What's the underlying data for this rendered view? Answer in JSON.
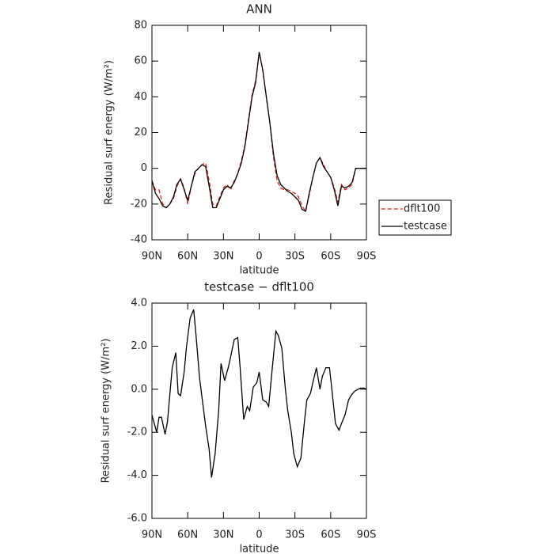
{
  "chart_data": [
    {
      "type": "line",
      "title": "ANN",
      "xlabel": "latitude",
      "ylabel": "Residual surf energy (W/m²)",
      "x": [
        90,
        87,
        84,
        81,
        78,
        75,
        72,
        69,
        66,
        63,
        60,
        57,
        54,
        51,
        48,
        45,
        42,
        39,
        36,
        33,
        30,
        27,
        24,
        21,
        18,
        15,
        12,
        9,
        6,
        3,
        0,
        -3,
        -6,
        -9,
        -12,
        -15,
        -18,
        -21,
        -24,
        -27,
        -30,
        -33,
        -36,
        -39,
        -42,
        -45,
        -48,
        -51,
        -54,
        -57,
        -60,
        -63,
        -66,
        -69,
        -72,
        -75,
        -78,
        -81,
        -84,
        -87,
        -90
      ],
      "series": [
        {
          "name": "dflt100",
          "color": "#e0201b",
          "dash": true,
          "values": [
            -7,
            -12,
            -12,
            -20,
            -22,
            -20,
            -17,
            -10,
            -6,
            -11,
            -20,
            -10,
            -3,
            0,
            2,
            3,
            -7,
            -20,
            -21,
            -16,
            -11,
            -9,
            -12,
            -7,
            -3,
            4,
            13,
            27,
            41,
            49,
            65,
            55,
            40,
            25,
            6,
            -7,
            -11,
            -12,
            -12,
            -13,
            -14,
            -16,
            -21,
            -24,
            -15,
            -5,
            3,
            6,
            2,
            -2,
            -5,
            -11,
            -19,
            -9,
            -12,
            -11,
            -9,
            0,
            0,
            0,
            0
          ]
        },
        {
          "name": "testcase",
          "color": "#000000",
          "dash": false,
          "values": [
            -7,
            -14,
            -17,
            -21,
            -22,
            -20,
            -16,
            -9,
            -6,
            -12,
            -18,
            -10,
            -2,
            0,
            2,
            1,
            -10,
            -22,
            -22,
            -17,
            -12,
            -10,
            -11,
            -8,
            -3,
            3,
            12,
            26,
            40,
            48,
            65,
            55,
            40,
            25,
            8,
            -4,
            -9,
            -11,
            -13,
            -14,
            -16,
            -18,
            -23,
            -24,
            -14,
            -5,
            3,
            6,
            1,
            -2,
            -5,
            -12,
            -21,
            -10,
            -11,
            -10,
            -8,
            0,
            0,
            0,
            0
          ]
        }
      ],
      "xlim": [
        90,
        -90
      ],
      "ylim": [
        -40,
        80
      ],
      "xticks": [
        {
          "value": 90,
          "label": "90N"
        },
        {
          "value": 60,
          "label": "60N"
        },
        {
          "value": 30,
          "label": "30N"
        },
        0,
        {
          "value": -30,
          "label": "30S"
        },
        {
          "value": -60,
          "label": "60S"
        },
        {
          "value": -90,
          "label": "90S"
        }
      ],
      "yticks": [
        -40,
        -20,
        0,
        20,
        40,
        60,
        80
      ],
      "legend": "right"
    },
    {
      "type": "line",
      "title": "testcase − dflt100",
      "xlabel": "latitude",
      "ylabel": "Residual surf energy (W/m²)",
      "x": [
        90,
        88,
        86,
        84,
        82,
        79,
        77,
        73,
        70,
        68,
        66,
        63,
        61,
        58,
        55,
        53,
        50,
        47,
        45,
        42,
        40,
        37,
        34,
        32,
        29,
        26,
        24,
        21,
        18,
        16,
        13,
        10,
        8,
        5,
        2,
        0,
        -3,
        -6,
        -8,
        -11,
        -14,
        -16,
        -19,
        -22,
        -24,
        -27,
        -29,
        -32,
        -35,
        -38,
        -40,
        -43,
        -45,
        -48,
        -51,
        -53,
        -56,
        -59,
        -61,
        -64,
        -67,
        -69,
        -72,
        -75,
        -77,
        -80,
        -83,
        -85,
        -88,
        -90
      ],
      "values": [
        -1.2,
        -1.6,
        -2.0,
        -1.3,
        -1.3,
        -2.1,
        -1.5,
        1.0,
        1.7,
        -0.2,
        -0.3,
        0.8,
        2.0,
        3.3,
        3.7,
        2.5,
        0.5,
        -0.8,
        -1.7,
        -2.8,
        -4.1,
        -3.0,
        -1.0,
        1.2,
        0.4,
        1.0,
        1.5,
        2.3,
        2.4,
        1.0,
        -1.4,
        -0.8,
        -1.0,
        0.1,
        0.3,
        0.8,
        -0.5,
        -0.6,
        -0.8,
        1.0,
        2.7,
        2.5,
        1.9,
        0.0,
        -1.0,
        -2.0,
        -3.0,
        -3.6,
        -3.2,
        -1.5,
        -0.5,
        -0.2,
        0.3,
        1.0,
        0.0,
        0.6,
        1.0,
        1.0,
        0.0,
        -1.6,
        -1.9,
        -1.6,
        -1.2,
        -0.5,
        -0.3,
        -0.1,
        0.0,
        0.05,
        0.05,
        0.0
      ],
      "color": "#000000",
      "xlim": [
        90,
        -90
      ],
      "ylim": [
        -6,
        4
      ],
      "xticks": [
        {
          "value": 90,
          "label": "90N"
        },
        {
          "value": 60,
          "label": "60N"
        },
        {
          "value": 30,
          "label": "30N"
        },
        0,
        {
          "value": -30,
          "label": "30S"
        },
        {
          "value": -60,
          "label": "60S"
        },
        {
          "value": -90,
          "label": "90S"
        }
      ],
      "yticks": [
        {
          "value": -6,
          "label": "-6.0"
        },
        {
          "value": -4,
          "label": "-4.0"
        },
        {
          "value": -2,
          "label": "-2.0"
        },
        {
          "value": 0,
          "label": "0.0"
        },
        {
          "value": 2,
          "label": "2.0"
        },
        {
          "value": 4,
          "label": "4.0"
        }
      ]
    }
  ]
}
